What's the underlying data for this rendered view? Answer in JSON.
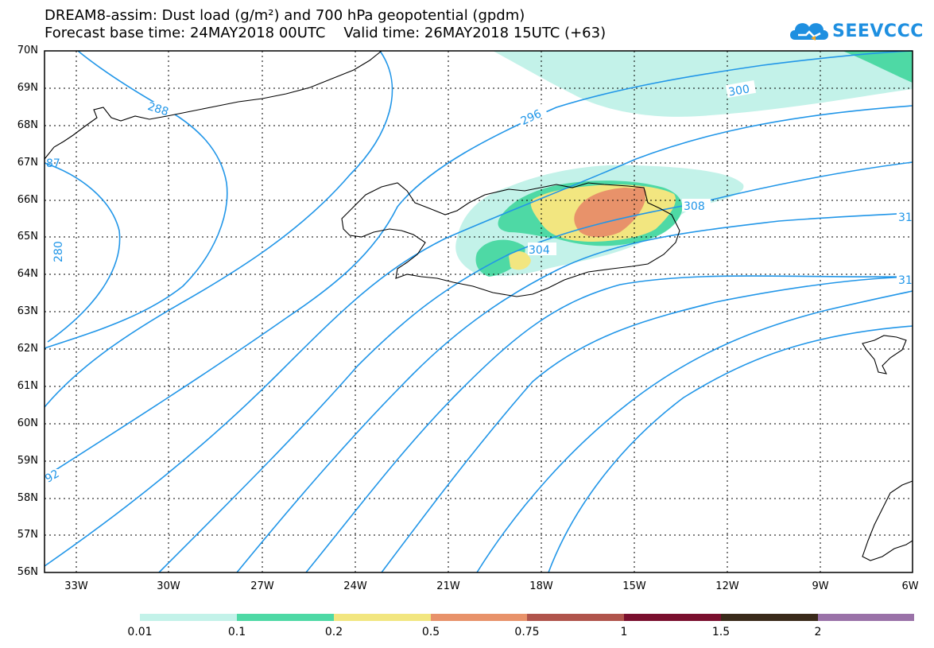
{
  "title": {
    "line1": "DREAM8-assim: Dust load (g/m²) and 700 hPa geopotential (gpdm)",
    "line2": "Forecast base time: 24MAY2018 00UTC    Valid time: 26MAY2018 15UTC (+63)"
  },
  "logo": {
    "text": "SEEVCCC",
    "icon": "cloud-logo-icon"
  },
  "axes": {
    "lat_labels": [
      "70N",
      "69N",
      "68N",
      "67N",
      "66N",
      "65N",
      "64N",
      "63N",
      "62N",
      "61N",
      "60N",
      "59N",
      "58N",
      "57N",
      "56N"
    ],
    "lon_labels": [
      "33W",
      "30W",
      "27W",
      "24W",
      "21W",
      "18W",
      "15W",
      "12W",
      "9W",
      "6W"
    ],
    "lat_range": [
      56,
      70
    ],
    "lon_range": [
      -34.3,
      -6
    ]
  },
  "contour_labels": {
    "c288": "288",
    "c296": "296",
    "c300": "300",
    "c304": "304",
    "c308": "308",
    "c31a": "31",
    "c31b": "31",
    "c292": "92",
    "c280": "280",
    "c2870": "87"
  },
  "colorbar": {
    "labels": [
      "0.01",
      "0.1",
      "0.2",
      "0.5",
      "0.75",
      "1",
      "1.5",
      "2"
    ],
    "colors": [
      "#c3f2e9",
      "#4ed9a5",
      "#f2e680",
      "#e8926a",
      "#b0544c",
      "#7a0f2e",
      "#3a2a1a",
      "#9a72a8"
    ]
  },
  "colors": {
    "contour": "#2196e8",
    "coast": "#000000"
  }
}
